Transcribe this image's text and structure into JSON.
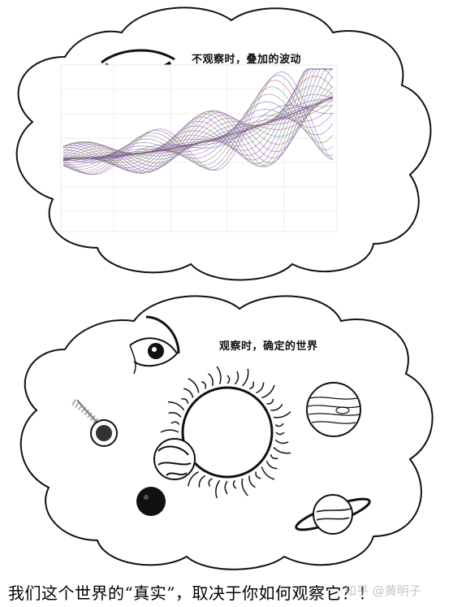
{
  "top_cloud": {
    "caption": "不观察时，叠加的波动"
  },
  "bottom_cloud": {
    "caption": "观察时，确定的世界"
  },
  "bottom_text": "我们这个世界的“真实”，取决于你如何观察它？！",
  "watermark": "知乎 @黄明子",
  "icons": [
    "closed-eye-icon",
    "open-eye-icon",
    "sun-icon",
    "planet-icon",
    "saturn-icon",
    "comet-icon"
  ]
}
